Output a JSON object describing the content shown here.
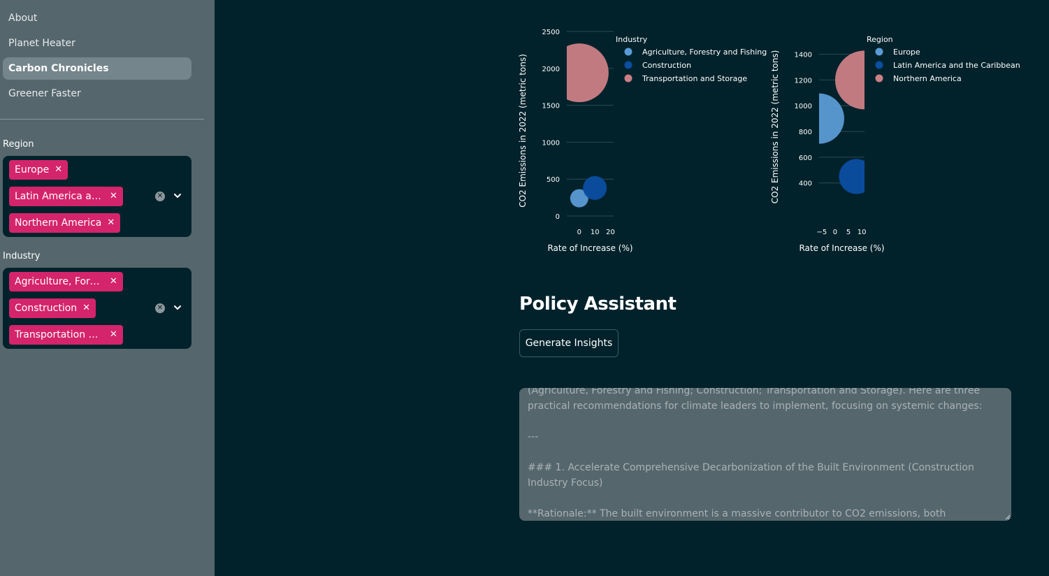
{
  "sidebar": {
    "nav": [
      {
        "label": "About",
        "active": false
      },
      {
        "label": "Planet Heater",
        "active": false
      },
      {
        "label": "Carbon Chronicles",
        "active": true
      },
      {
        "label": "Greener Faster",
        "active": false
      }
    ],
    "region_filter": {
      "label": "Region",
      "chips": [
        "Europe",
        "Latin America an…",
        "Northern America"
      ]
    },
    "industry_filter": {
      "label": "Industry",
      "chips": [
        "Agriculture, Fore…",
        "Construction",
        "Transportation a…"
      ]
    },
    "icons": {
      "remove": "close-icon",
      "clear": "clear-circle-icon",
      "open": "chevron-down-icon"
    }
  },
  "chart_data": [
    {
      "type": "scatter",
      "ylabel": "CO2 Emissions in 2022 (metric tons)",
      "xlabel": "Rate of Increase (%)",
      "xticks": [
        "0",
        "10",
        "20"
      ],
      "yticks": [
        "0",
        "500",
        "1000",
        "1500",
        "2000",
        "2500"
      ],
      "xlim": [
        -8,
        22
      ],
      "ylim": [
        0,
        2500
      ],
      "legend_title": "Industry",
      "legend_position": "top-right",
      "series": [
        {
          "name": "Agriculture, Forestry and Fishing",
          "color": "#5b9bd5",
          "points": [
            {
              "x": 0,
              "y": 240,
              "size": 13
            }
          ]
        },
        {
          "name": "Construction",
          "color": "#0b4ea2",
          "points": [
            {
              "x": 10,
              "y": 380,
              "size": 17
            }
          ]
        },
        {
          "name": "Transportation and Storage",
          "color": "#cb8085",
          "points": [
            {
              "x": 0,
              "y": 1940,
              "size": 42
            }
          ]
        }
      ]
    },
    {
      "type": "scatter",
      "ylabel": "CO2 Emissions in 2022 (metric tons)",
      "xlabel": "Rate of Increase (%)",
      "xticks": [
        "−5",
        "0",
        "5",
        "10"
      ],
      "yticks": [
        "400",
        "600",
        "800",
        "1000",
        "1200",
        "1400"
      ],
      "xlim": [
        -6,
        11
      ],
      "ylim": [
        290,
        1490
      ],
      "legend_title": "Region",
      "legend_position": "top-right",
      "series": [
        {
          "name": "Europe",
          "color": "#5b9bd5",
          "points": [
            {
              "x": -6,
              "y": 900,
              "size": 36
            }
          ]
        },
        {
          "name": "Latin America and the Caribbean",
          "color": "#0b4ea2",
          "points": [
            {
              "x": 8,
              "y": 450,
              "size": 25
            }
          ]
        },
        {
          "name": "Northern America",
          "color": "#cb8085",
          "points": [
            {
              "x": 11,
              "y": 1200,
              "size": 42
            }
          ]
        }
      ]
    }
  ],
  "policy": {
    "title": "Policy Assistant",
    "button_label": "Generate Insights",
    "output_text": "(Agriculture, Forestry and Fishing; Construction; Transportation and Storage). Here are three practical recommendations for climate leaders to implement, focusing on systemic changes:\n\n---\n\n### 1. Accelerate Comprehensive Decarbonization of the Built Environment (Construction Industry Focus)\n\n**Rationale:** The built environment is a massive contributor to CO2 emissions, both through the"
  }
}
